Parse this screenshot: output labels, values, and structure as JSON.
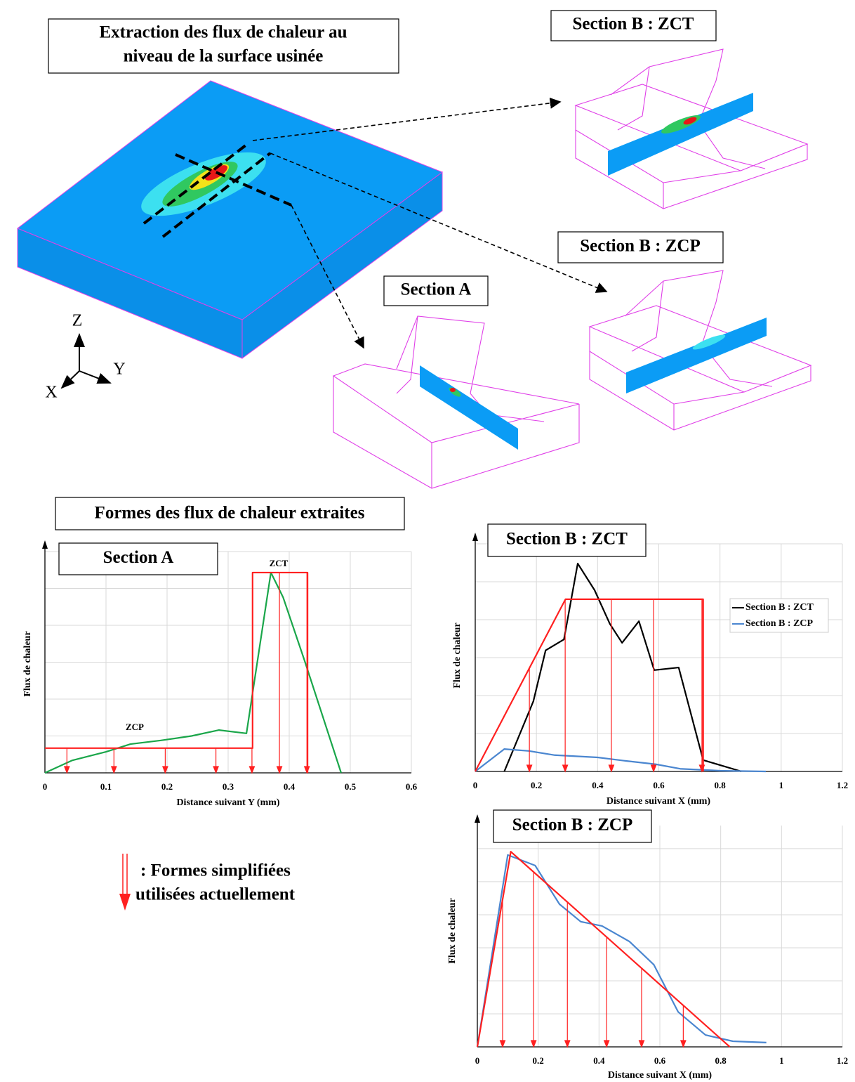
{
  "figure": {
    "title_lines": [
      "Extraction des flux de chaleur au",
      "niveau de la surface usinée"
    ],
    "views": [
      "Section B : ZCT",
      "Section B : ZCP",
      "Section A"
    ],
    "axes": [
      "Z",
      "Y",
      "X"
    ],
    "shapes_title": "Formes des flux de chaleur extraites",
    "key_lines": [
      ": Formes simplifiées",
      "utilisées actuellement"
    ]
  },
  "chart_data": [
    {
      "type": "line",
      "title": "Section A",
      "xlabel": "Distance suivant Y (mm)",
      "ylabel": "Flux de chaleur",
      "xlim": [
        0,
        0.6
      ],
      "xticks": [
        0,
        0.1,
        0.2,
        0.3,
        0.4,
        0.5,
        0.6
      ],
      "ylim": [
        0,
        6
      ],
      "yticks": [
        0,
        1,
        2,
        3,
        4,
        5,
        6
      ],
      "grid": true,
      "annotations": [
        "ZCT",
        "ZCP"
      ],
      "series": [
        {
          "color": "#1aa64a",
          "x": [
            0,
            0.045,
            0.1,
            0.14,
            0.19,
            0.24,
            0.285,
            0.33,
            0.37,
            0.39,
            0.425,
            0.485
          ],
          "values": [
            0,
            0.34,
            0.57,
            0.78,
            0.88,
            1.0,
            1.16,
            1.07,
            5.43,
            4.76,
            3.05,
            0
          ]
        },
        {
          "color": "#ff2020",
          "x": [
            0,
            0.34,
            0.34,
            0.43,
            0.43
          ],
          "values": [
            0.67,
            0.67,
            5.43,
            5.43,
            0
          ]
        }
      ],
      "arrows_x": [
        0.036,
        0.113,
        0.197,
        0.28,
        0.339,
        0.384,
        0.429
      ],
      "arrow_color": "#ff2020"
    },
    {
      "type": "line",
      "title": "Section B : ZCT",
      "xlabel": "Distance suivant X (mm)",
      "ylabel": "Flux de chaleur",
      "xlim": [
        0,
        1.2
      ],
      "xticks": [
        0,
        0.2,
        0.4,
        0.6,
        0.8,
        1,
        1.2
      ],
      "ylim": [
        0,
        6
      ],
      "yticks": [
        0,
        1,
        2,
        3,
        4,
        5,
        6
      ],
      "grid": true,
      "legend": "upper right",
      "series": [
        {
          "name": "Section B : ZCT",
          "color": "#000000",
          "x": [
            0.095,
            0.19,
            0.23,
            0.29,
            0.335,
            0.39,
            0.44,
            0.48,
            0.535,
            0.585,
            0.665,
            0.745,
            0.87
          ],
          "values": [
            0,
            1.85,
            3.19,
            3.48,
            5.48,
            4.78,
            3.89,
            3.39,
            3.96,
            2.67,
            2.74,
            0.3,
            0
          ]
        },
        {
          "name": "Section B : ZCP",
          "color": "#4a86d0",
          "x": [
            0,
            0.095,
            0.175,
            0.26,
            0.4,
            0.49,
            0.59,
            0.67,
            0.8,
            0.95
          ],
          "values": [
            0,
            0.59,
            0.54,
            0.43,
            0.37,
            0.28,
            0.19,
            0.07,
            0.02,
            0
          ]
        },
        {
          "color": "#ff2020",
          "x": [
            0,
            0.295,
            0.745,
            0.745
          ],
          "values": [
            0,
            4.54,
            4.54,
            0
          ]
        }
      ],
      "arrows_x": [
        0.177,
        0.294,
        0.445,
        0.583,
        0.741
      ],
      "arrow_color": "#ff2020"
    },
    {
      "type": "line",
      "title": "Section B : ZCP",
      "xlabel": "Distance suivant X (mm)",
      "ylabel": "Flux de chaleur",
      "xlim": [
        0,
        1.2
      ],
      "xticks": [
        0,
        0.2,
        0.4,
        0.6,
        0.8,
        1,
        1.2
      ],
      "ylim": [
        0,
        6.7
      ],
      "yticks": [
        0,
        1,
        2,
        3,
        4,
        5,
        6
      ],
      "grid": true,
      "series": [
        {
          "color": "#4a86d0",
          "x": [
            0,
            0.1,
            0.19,
            0.27,
            0.34,
            0.41,
            0.5,
            0.58,
            0.66,
            0.75,
            0.84,
            0.95
          ],
          "values": [
            0,
            5.81,
            5.49,
            4.32,
            3.79,
            3.66,
            3.19,
            2.49,
            1.06,
            0.36,
            0.17,
            0.13
          ]
        },
        {
          "color": "#ff2020",
          "x": [
            0,
            0.11,
            0.83
          ],
          "values": [
            0,
            5.91,
            0
          ]
        }
      ],
      "arrows_x": [
        0.083,
        0.185,
        0.296,
        0.425,
        0.54,
        0.677
      ],
      "arrow_color": "#ff2020"
    }
  ]
}
